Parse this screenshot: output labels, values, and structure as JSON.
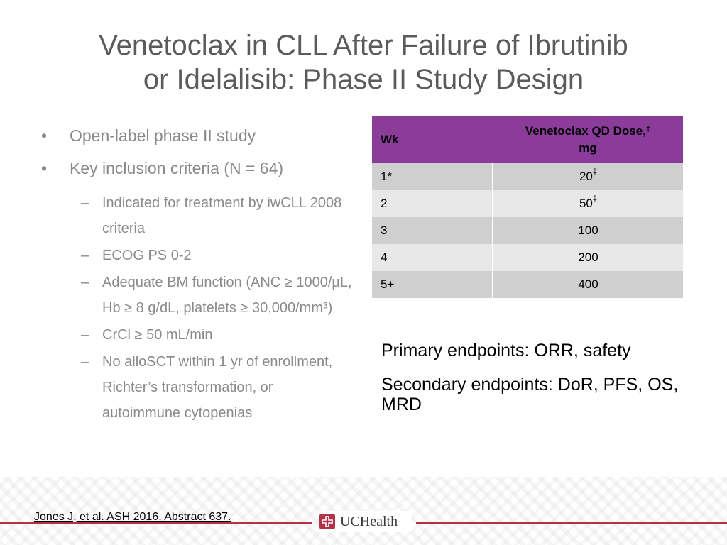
{
  "title": {
    "line1": "Venetoclax in CLL After Failure of Ibrutinib",
    "line2": "or Idelalisib: Phase II Study Design"
  },
  "bullets": [
    {
      "text": "Open-label phase II study"
    },
    {
      "text": "Key inclusion criteria (N = 64)"
    }
  ],
  "bullet_glyph": "•",
  "dash_glyph": "–",
  "criteria": [
    {
      "text": "Indicated for treatment by iwCLL 2008 criteria"
    },
    {
      "text": "ECOG PS 0-2"
    },
    {
      "text": "Adequate BM function (ANC ≥ 1000/µL, Hb ≥ 8 g/dL, platelets ≥ 30,000/mm³)"
    },
    {
      "text": "CrCl ≥ 50 mL/min"
    },
    {
      "text": "No alloSCT within 1 yr of enrollment, Richter’s transformation, or autoimmune cytopenias"
    }
  ],
  "table": {
    "header_wk": "Wk",
    "header_dose_a": "Venetoclax QD Dose,",
    "header_dose_mark": "†",
    "header_dose_b": "mg",
    "rows": [
      {
        "wk": "1*",
        "dose": "20",
        "mark": "‡"
      },
      {
        "wk": "2",
        "dose": "50",
        "mark": "‡"
      },
      {
        "wk": "3",
        "dose": "100",
        "mark": ""
      },
      {
        "wk": "4",
        "dose": "200",
        "mark": ""
      },
      {
        "wk": "5+",
        "dose": "400",
        "mark": ""
      }
    ]
  },
  "endpoints": {
    "primary": "Primary endpoints: ORR, safety",
    "secondary": "Secondary endpoints: DoR, PFS, OS, MRD"
  },
  "footer": {
    "reference": "Jones J, et al. ASH 2016. Abstract 637.",
    "logo_text": "UCHealth",
    "logo_icon": "uchealth-cross-icon"
  },
  "colors": {
    "table_header": "#8b3b9a",
    "brand": "#b2324a",
    "title_text": "#5b5b5b",
    "bullet_text": "#8a8a8a"
  }
}
